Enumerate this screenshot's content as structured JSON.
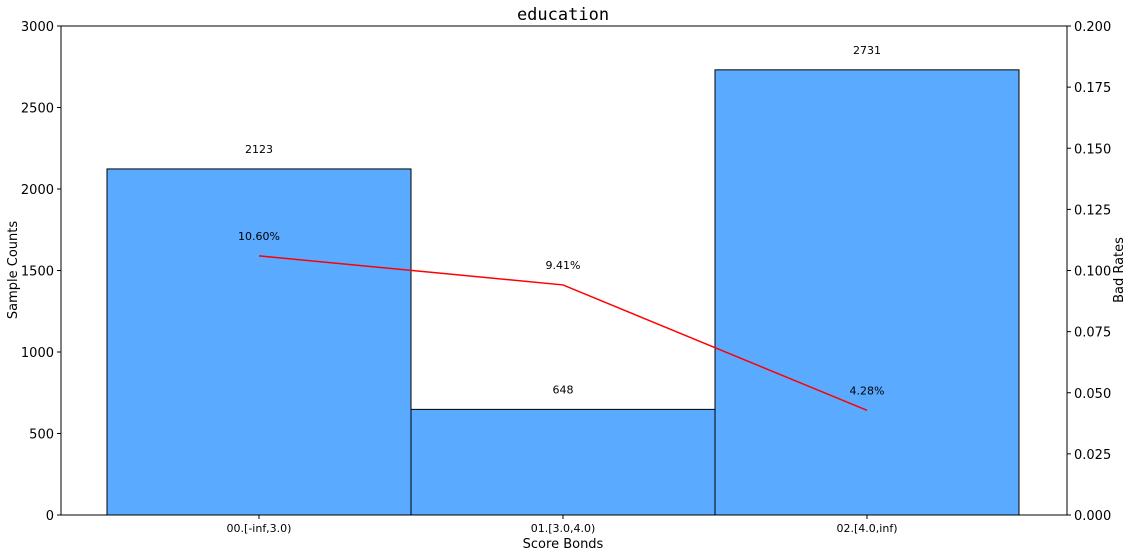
{
  "chart_data": {
    "type": "bar",
    "title": "education",
    "xlabel": "Score Bonds",
    "ylabel": "Sample Counts",
    "y2label": "Bad Rates",
    "categories": [
      "00.[-inf,3.0)",
      "01.[3.0,4.0)",
      "02.[4.0,inf)"
    ],
    "series": [
      {
        "type": "bar",
        "values": [
          2123,
          648,
          2731
        ],
        "color": "#5aaaff"
      },
      {
        "type": "line",
        "axis": "right",
        "values": [
          0.106,
          0.0941,
          0.0428
        ],
        "color": "#ff0000"
      }
    ],
    "bar_labels": [
      "2123",
      "648",
      "2731"
    ],
    "line_labels": [
      "10.60%",
      "9.41%",
      "4.28%"
    ],
    "ylim": [
      0,
      3000
    ],
    "yticks": [
      0,
      500,
      1000,
      1500,
      2000,
      2500,
      3000
    ],
    "y2lim": [
      0,
      0.2
    ],
    "y2ticks": [
      "0.000",
      "0.025",
      "0.050",
      "0.075",
      "0.100",
      "0.125",
      "0.150",
      "0.175",
      "0.200"
    ],
    "grid": false,
    "legend": "none"
  }
}
